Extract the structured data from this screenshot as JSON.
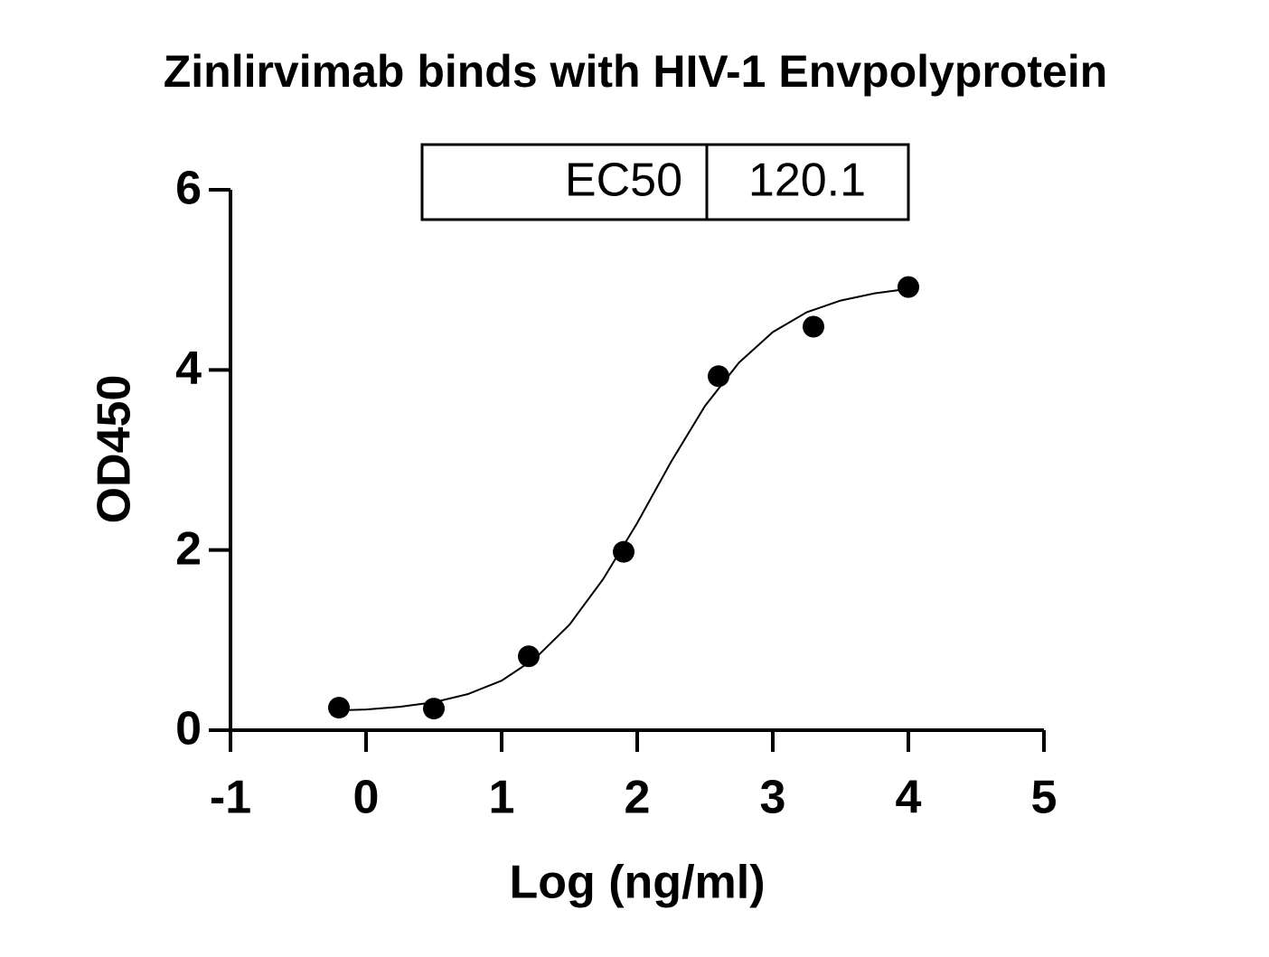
{
  "chart_data": {
    "type": "scatter",
    "title": "Zinlirvimab binds with HIV-1 Envpolyprotein",
    "x_label": "Log (ng/ml)",
    "y_label": "OD450",
    "x": [
      -0.2,
      0.5,
      1.2,
      1.9,
      2.6,
      3.3,
      4.0
    ],
    "values": [
      0.25,
      0.24,
      0.82,
      1.98,
      3.93,
      4.48,
      4.92
    ],
    "color": "#000000",
    "curve": {
      "x": [
        -0.2,
        0,
        0.25,
        0.5,
        0.75,
        1,
        1.25,
        1.5,
        1.75,
        2,
        2.25,
        2.5,
        2.75,
        3,
        3.25,
        3.5,
        3.75,
        4
      ],
      "values": [
        0.22,
        0.23,
        0.26,
        0.31,
        0.4,
        0.55,
        0.8,
        1.17,
        1.68,
        2.3,
        2.98,
        3.6,
        4.08,
        4.42,
        4.64,
        4.77,
        4.85,
        4.9
      ]
    },
    "xlim": [
      -1,
      5
    ],
    "xticks": [
      -1,
      0,
      1,
      2,
      3,
      4,
      5
    ],
    "ylim": [
      0,
      6
    ],
    "yticks": [
      0,
      2,
      4,
      6
    ],
    "ec50_table": {
      "label": "EC50",
      "value": 120.1
    }
  }
}
